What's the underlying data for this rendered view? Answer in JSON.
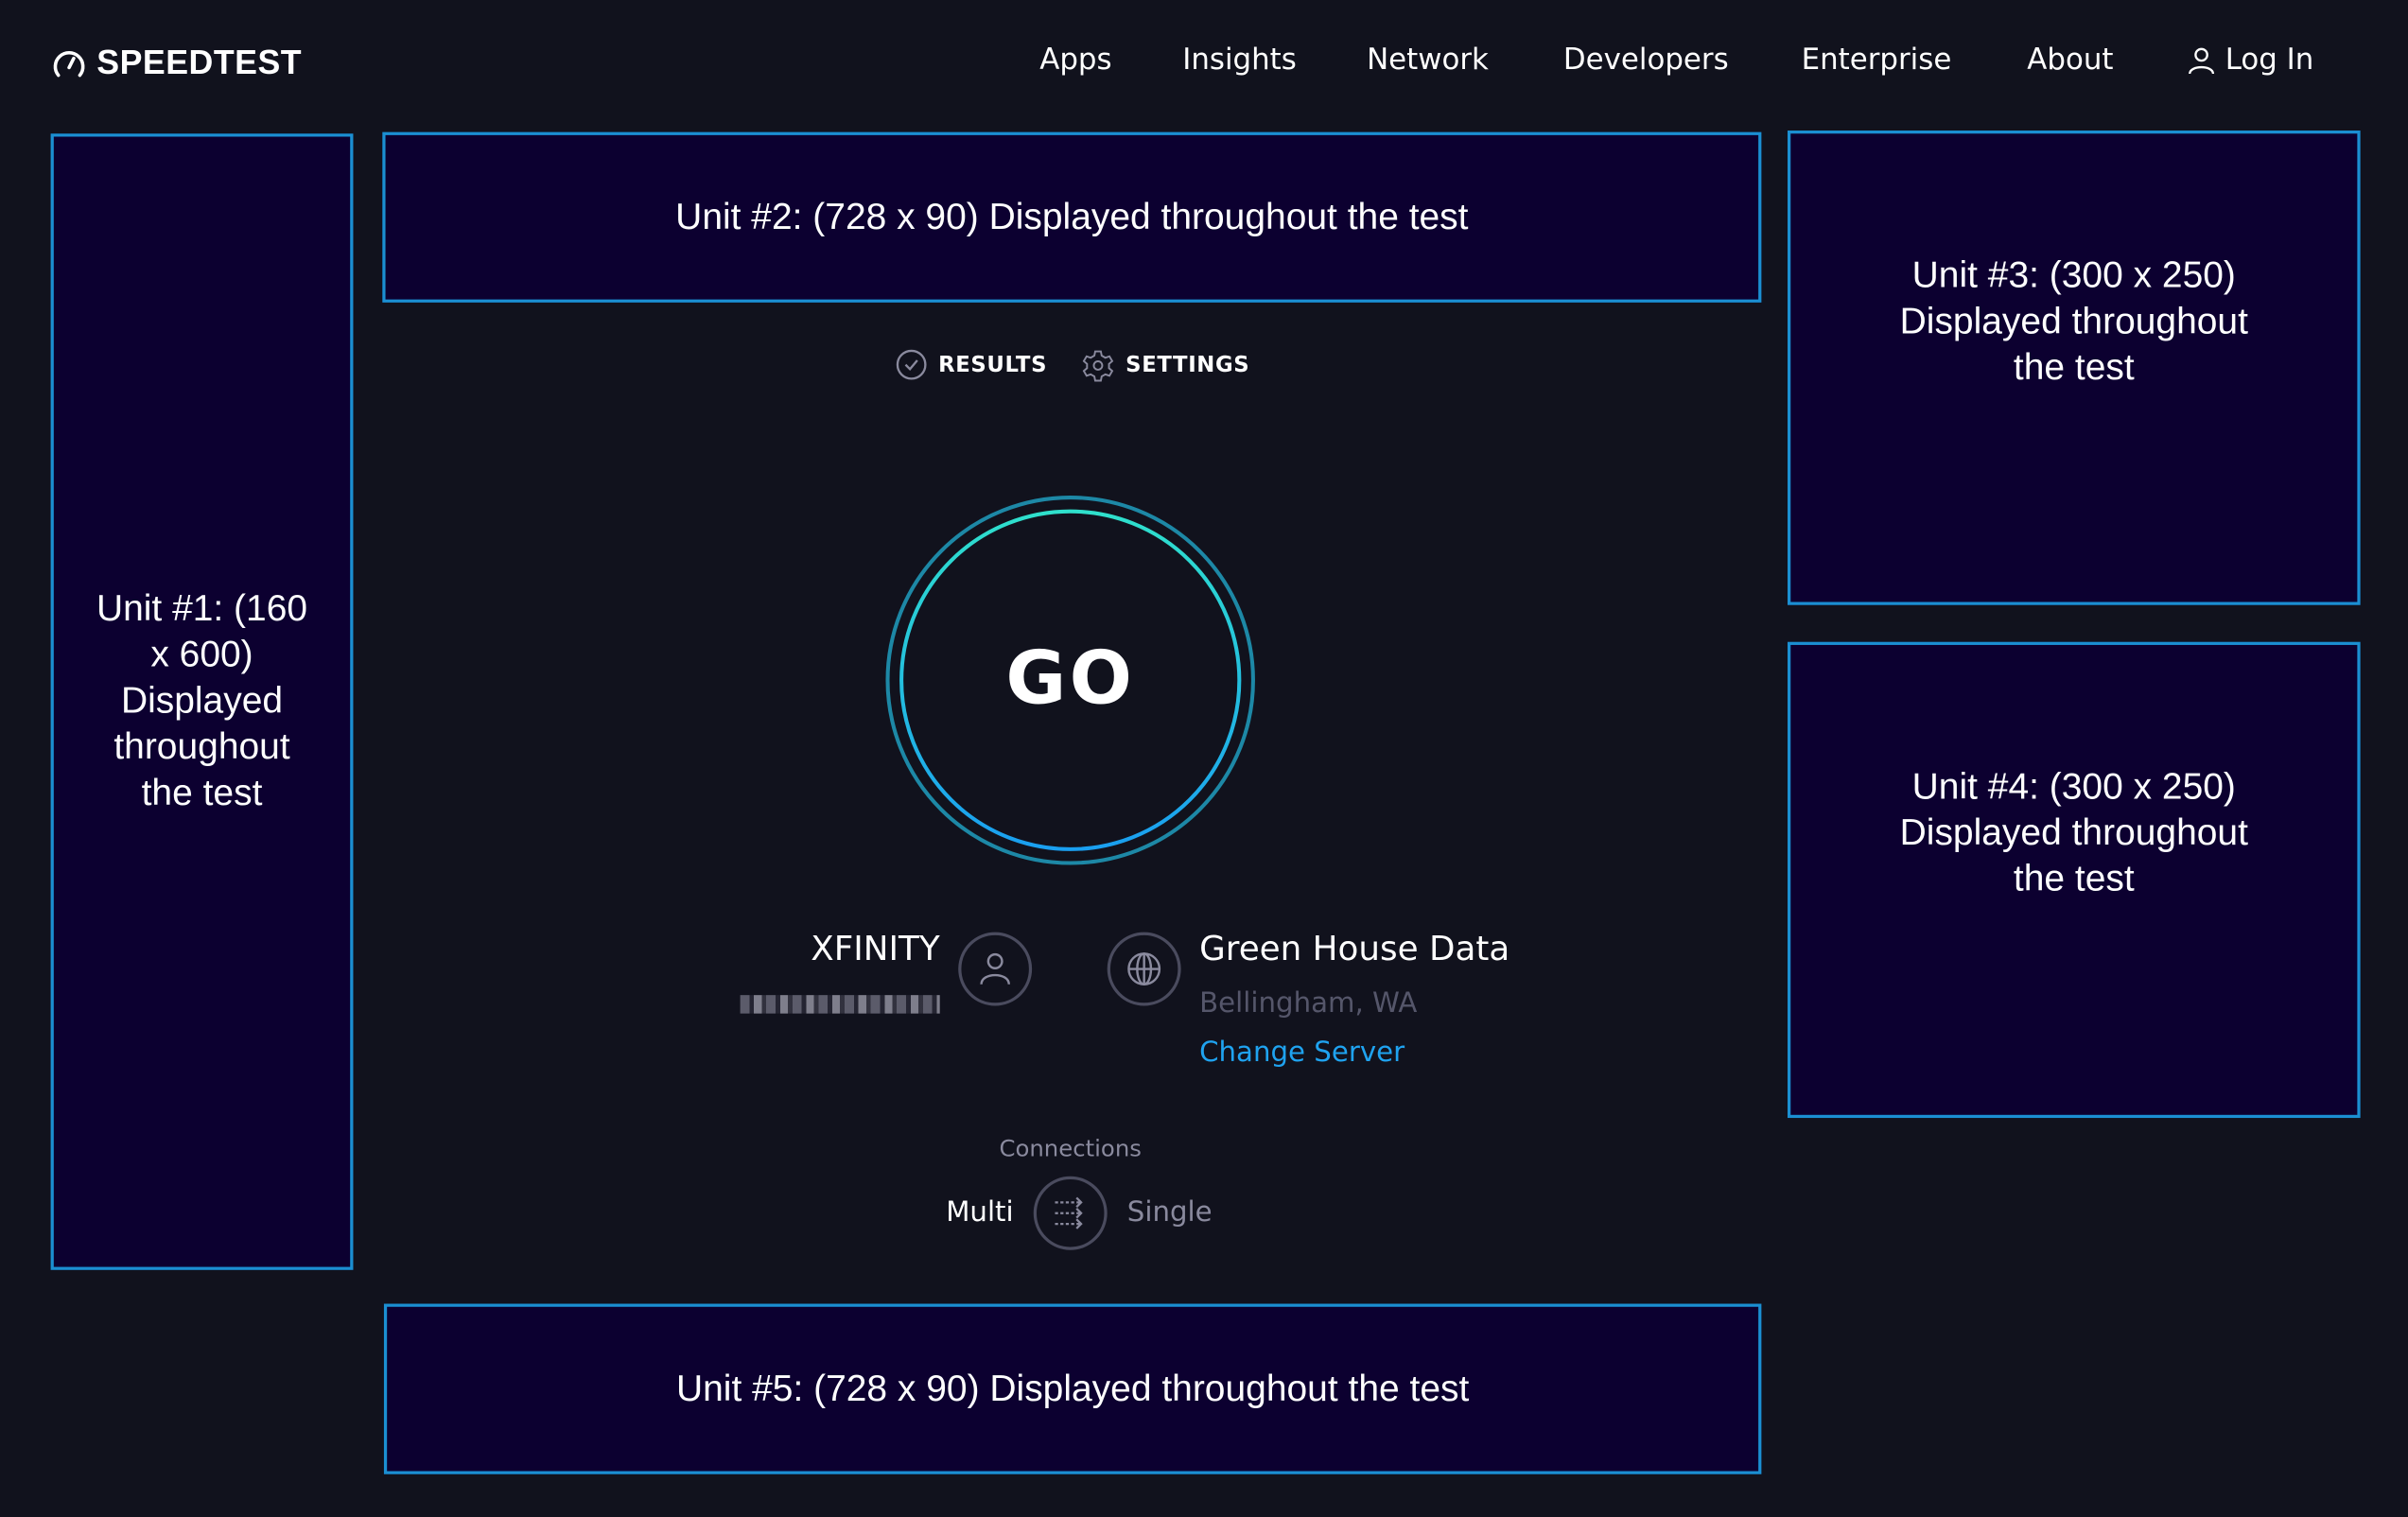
{
  "header": {
    "logo_text": "SPEEDTEST",
    "nav": [
      "Apps",
      "Insights",
      "Network",
      "Developers",
      "Enterprise",
      "About"
    ],
    "login_label": "Log In"
  },
  "ads": {
    "unit1": "Unit #1: (160 x 600) Displayed throughout the test",
    "unit2": "Unit #2: (728 x 90) Displayed throughout the test",
    "unit3": "Unit #3: (300 x 250) Displayed throughout the test",
    "unit4": "Unit #4: (300 x 250) Displayed throughout the test",
    "unit5": "Unit #5: (728 x 90) Displayed throughout the test"
  },
  "tabs": {
    "results": "RESULTS",
    "settings": "SETTINGS"
  },
  "go_label": "GO",
  "isp": {
    "name": "XFINITY"
  },
  "server": {
    "name": "Green House Data",
    "location": "Bellingham, WA",
    "change_label": "Change Server"
  },
  "connections": {
    "label": "Connections",
    "multi": "Multi",
    "single": "Single",
    "selected": "Multi"
  },
  "colors": {
    "background": "#11121d",
    "ad_background": "#0c0030",
    "ad_border": "#1b8fd2",
    "link": "#1fa3f0",
    "ring_teal": "#2fe0cc",
    "ring_blue": "#1a9ff0"
  }
}
